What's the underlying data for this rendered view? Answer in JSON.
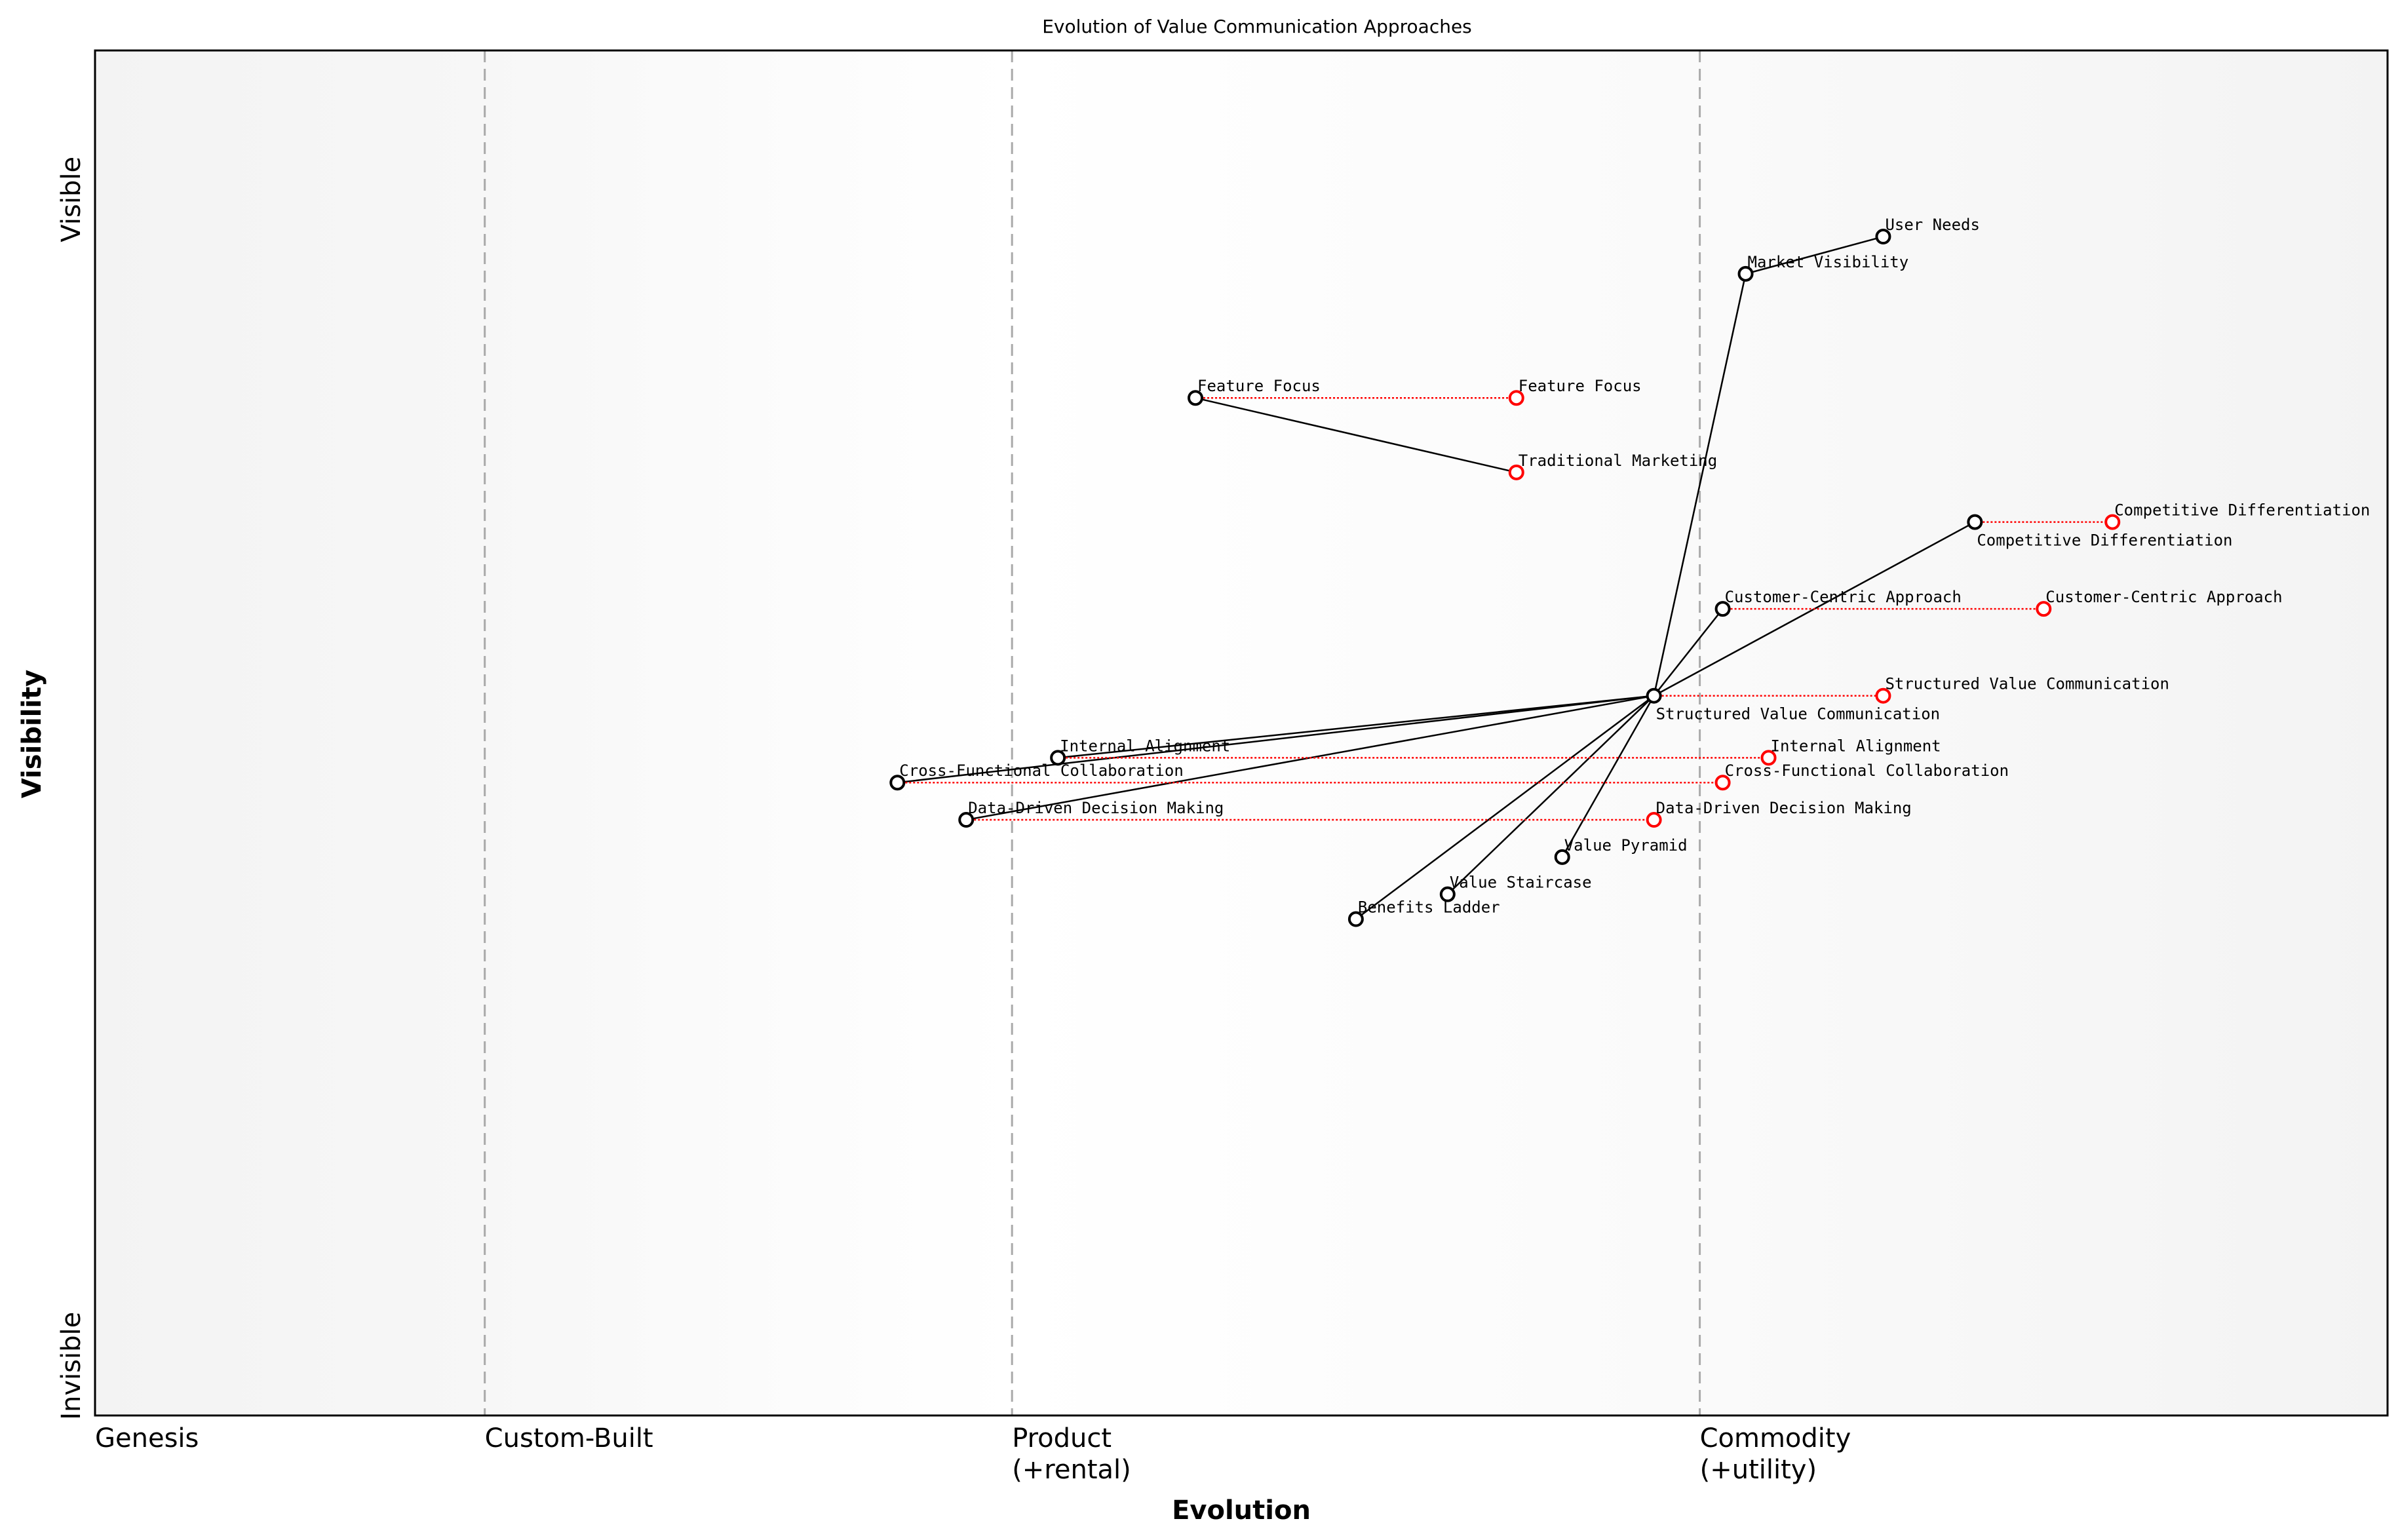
{
  "chart_data": {
    "type": "scatter",
    "subtype": "wardley-map",
    "title": "Evolution of Value Communication Approaches",
    "xlabel": "Evolution",
    "ylabel": "Visibility",
    "xlim": [
      0,
      1
    ],
    "ylim": [
      0,
      1.1
    ],
    "grid": false,
    "x_stages": [
      {
        "label": "Genesis",
        "x": 0
      },
      {
        "label": "Custom-Built",
        "x": 0.17
      },
      {
        "label": "Product\n(+rental)",
        "x": 0.4
      },
      {
        "label": "Commodity\n(+utility)",
        "x": 0.7
      }
    ],
    "y_ticks": [
      {
        "label": "Invisible",
        "y": 0.04
      },
      {
        "label": "Visible",
        "y": 0.98
      }
    ],
    "colors": {
      "component": "#000000",
      "evolved": "#ff0000",
      "stage_line": "#aaaaaa",
      "band": "#f5f5f5"
    },
    "components": [
      {
        "name": "User Needs",
        "x": 0.78,
        "y": 0.95
      },
      {
        "name": "Market Visibility",
        "x": 0.72,
        "y": 0.92
      },
      {
        "name": "Feature Focus",
        "x": 0.48,
        "y": 0.82
      },
      {
        "name": "Competitive Differentiation",
        "x": 0.82,
        "y": 0.72
      },
      {
        "name": "Customer-Centric Approach",
        "x": 0.71,
        "y": 0.65
      },
      {
        "name": "Structured Value Communication",
        "x": 0.68,
        "y": 0.58
      },
      {
        "name": "Internal Alignment",
        "x": 0.42,
        "y": 0.53
      },
      {
        "name": "Cross-Functional Collaboration",
        "x": 0.35,
        "y": 0.51
      },
      {
        "name": "Data-Driven Decision Making",
        "x": 0.38,
        "y": 0.48
      },
      {
        "name": "Value Pyramid",
        "x": 0.64,
        "y": 0.45
      },
      {
        "name": "Value Staircase",
        "x": 0.59,
        "y": 0.42
      },
      {
        "name": "Benefits Ladder",
        "x": 0.55,
        "y": 0.4
      }
    ],
    "evolved": [
      {
        "name": "Feature Focus",
        "from_x": 0.48,
        "x": 0.62,
        "y": 0.82
      },
      {
        "name": "Traditional Marketing",
        "x": 0.62,
        "y": 0.76
      },
      {
        "name": "Competitive Differentiation",
        "from_x": 0.82,
        "x": 0.88,
        "y": 0.72
      },
      {
        "name": "Customer-Centric Approach",
        "from_x": 0.71,
        "x": 0.85,
        "y": 0.65
      },
      {
        "name": "Structured Value Communication",
        "from_x": 0.68,
        "x": 0.78,
        "y": 0.58
      },
      {
        "name": "Internal Alignment",
        "from_x": 0.42,
        "x": 0.73,
        "y": 0.53
      },
      {
        "name": "Cross-Functional Collaboration",
        "from_x": 0.35,
        "x": 0.71,
        "y": 0.51
      },
      {
        "name": "Data-Driven Decision Making",
        "from_x": 0.38,
        "x": 0.68,
        "y": 0.48
      }
    ],
    "links": [
      [
        "User Needs",
        "Market Visibility"
      ],
      [
        "Market Visibility",
        "Structured Value Communication"
      ],
      [
        "Feature Focus",
        "Traditional Marketing"
      ],
      [
        "Structured Value Communication",
        "Competitive Differentiation"
      ],
      [
        "Structured Value Communication",
        "Customer-Centric Approach"
      ],
      [
        "Structured Value Communication",
        "Internal Alignment"
      ],
      [
        "Structured Value Communication",
        "Cross-Functional Collaboration"
      ],
      [
        "Structured Value Communication",
        "Data-Driven Decision Making"
      ],
      [
        "Structured Value Communication",
        "Value Pyramid"
      ],
      [
        "Structured Value Communication",
        "Value Staircase"
      ],
      [
        "Structured Value Communication",
        "Benefits Ladder"
      ]
    ]
  }
}
